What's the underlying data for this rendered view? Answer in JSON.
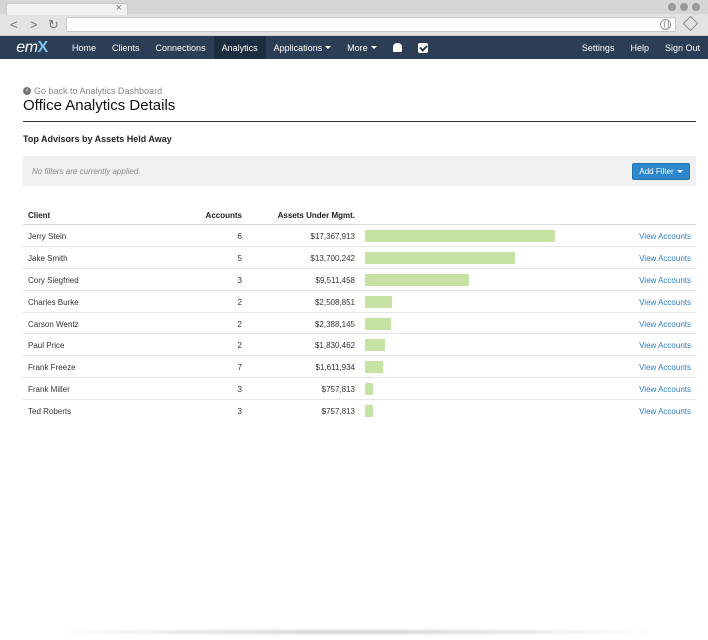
{
  "app": {
    "logo_text": "em",
    "logo_x": "X"
  },
  "nav": {
    "home": "Home",
    "clients": "Clients",
    "connections": "Connections",
    "analytics": "Analytics",
    "applications": "Applications",
    "more": "More",
    "settings": "Settings",
    "help": "Help",
    "sign_out": "Sign Out"
  },
  "page": {
    "back_link": "Go back to Analytics Dashboard",
    "title": "Office Analytics Details",
    "section_title": "Top Advisors by Assets Held Away",
    "filter_text": "No filters are currently applied.",
    "add_filter": "Add Filter"
  },
  "table": {
    "headers": {
      "client": "Client",
      "accounts": "Accounts",
      "aum": "Assets Under Mgmt."
    },
    "max_aum": 17367913,
    "rows": [
      {
        "client": "Jerry Stein",
        "accounts": "6",
        "aum": "$17,367,913",
        "aum_value": 17367913,
        "action": "View Accounts"
      },
      {
        "client": "Jake Smith",
        "accounts": "5",
        "aum": "$13,700,242",
        "aum_value": 13700242,
        "action": "View Accounts"
      },
      {
        "client": "Cory Siegfried",
        "accounts": "3",
        "aum": "$9,511,458",
        "aum_value": 9511458,
        "action": "View Accounts"
      },
      {
        "client": "Charles Burke",
        "accounts": "2",
        "aum": "$2,508,851",
        "aum_value": 2508851,
        "action": "View Accounts"
      },
      {
        "client": "Carson Wentz",
        "accounts": "2",
        "aum": "$2,388,145",
        "aum_value": 2388145,
        "action": "View Accounts"
      },
      {
        "client": "Paul Price",
        "accounts": "2",
        "aum": "$1,830,462",
        "aum_value": 1830462,
        "action": "View Accounts"
      },
      {
        "client": "Frank Freeze",
        "accounts": "7",
        "aum": "$1,611,934",
        "aum_value": 1611934,
        "action": "View Accounts"
      },
      {
        "client": "Frank Miller",
        "accounts": "3",
        "aum": "$757,813",
        "aum_value": 757813,
        "action": "View Accounts"
      },
      {
        "client": "Ted Roberts",
        "accounts": "3",
        "aum": "$757,813",
        "aum_value": 757813,
        "action": "View Accounts"
      }
    ]
  },
  "colors": {
    "nav_bg": "#2c3e55",
    "bar_fill": "#c6e3a4",
    "link": "#2e7fc2",
    "button": "#2e87cc"
  }
}
